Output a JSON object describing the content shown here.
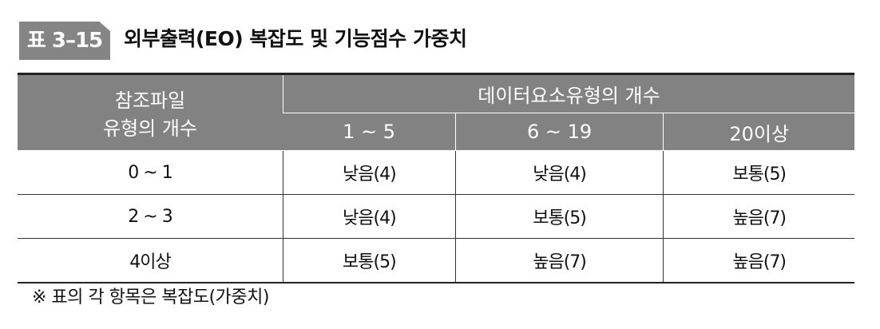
{
  "badge": "표 3–15",
  "title": "외부출력(EO) 복잡도 및 기능점수 가중치",
  "table": {
    "row_header": [
      "참조파일",
      "유형의 개수"
    ],
    "group_header": "데이터요소유형의 개수",
    "columns": [
      "1 ~ 5",
      "6 ~ 19",
      "20이상"
    ],
    "rows": [
      {
        "label": "0 ~ 1",
        "cells": [
          "낮음(4)",
          "낮음(4)",
          "보통(5)"
        ]
      },
      {
        "label": "2 ~ 3",
        "cells": [
          "낮음(4)",
          "보통(5)",
          "높음(7)"
        ]
      },
      {
        "label": "4이상",
        "cells": [
          "보통(5)",
          "높음(7)",
          "높음(7)"
        ]
      }
    ]
  },
  "note": "※ 표의 각 항목은 복잡도(가중치)"
}
